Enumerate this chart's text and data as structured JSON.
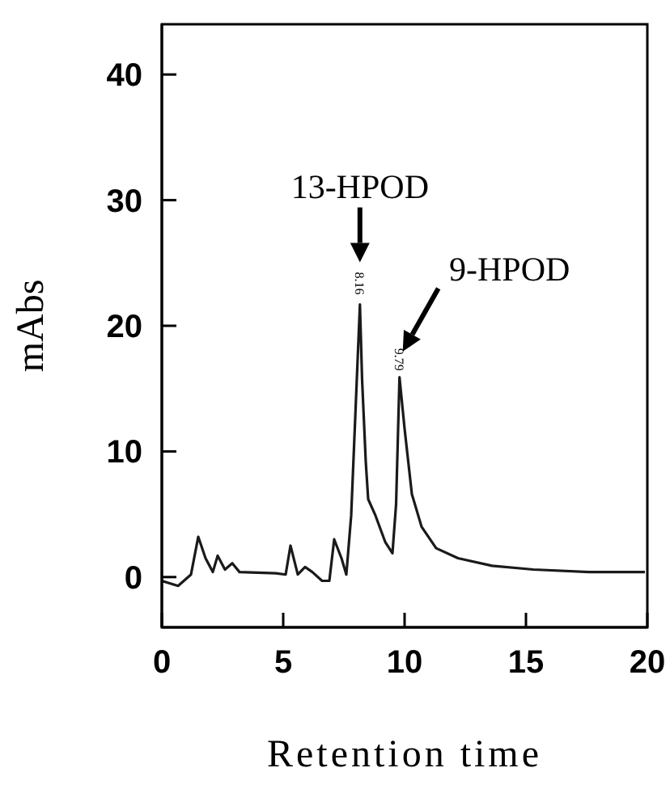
{
  "chart_data": {
    "type": "line",
    "xlabel": "Retention time",
    "ylabel": "mAbs",
    "x": [
      0,
      0.67,
      1.2,
      1.5,
      1.8,
      2.1,
      2.3,
      2.6,
      2.9,
      3.2,
      4.7,
      5.1,
      5.3,
      5.6,
      5.9,
      6.2,
      6.6,
      6.9,
      7.1,
      7.4,
      7.6,
      7.8,
      8.16,
      8.25,
      8.4,
      8.5,
      8.8,
      9.2,
      9.5,
      9.65,
      9.79,
      10.0,
      10.3,
      10.7,
      11.3,
      12.2,
      13.6,
      15.3,
      17.6,
      19.9
    ],
    "series": [
      {
        "color": "#1a1a1a",
        "values": [
          -0.3,
          -0.7,
          0.2,
          3.2,
          1.5,
          0.4,
          1.7,
          0.6,
          1.1,
          0.4,
          0.3,
          0.2,
          2.5,
          0.2,
          0.8,
          0.4,
          -0.3,
          -0.3,
          3.0,
          1.5,
          0.2,
          4.9,
          21.7,
          15.7,
          9.2,
          6.2,
          4.9,
          2.8,
          1.9,
          5.8,
          15.9,
          11.8,
          6.6,
          4.0,
          2.3,
          1.5,
          0.9,
          0.6,
          0.4,
          0.4
        ]
      }
    ],
    "xlim": [
      0,
      20
    ],
    "xticks": [
      0,
      5,
      10,
      15,
      20
    ],
    "ylim": [
      -4,
      44
    ],
    "yticks": [
      0,
      10,
      20,
      30,
      40
    ],
    "grid": false,
    "legend": false,
    "marker": "none",
    "line_style": "solid",
    "annotations": [
      "13-HPOD",
      "8.16",
      "9-HPOD",
      "9.79"
    ]
  }
}
